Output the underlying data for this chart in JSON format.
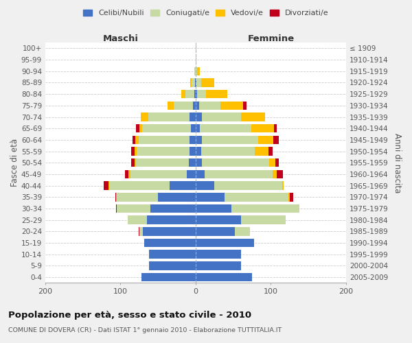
{
  "age_groups": [
    "0-4",
    "5-9",
    "10-14",
    "15-19",
    "20-24",
    "25-29",
    "30-34",
    "35-39",
    "40-44",
    "45-49",
    "50-54",
    "55-59",
    "60-64",
    "65-69",
    "70-74",
    "75-79",
    "80-84",
    "85-89",
    "90-94",
    "95-99",
    "100+"
  ],
  "birth_years": [
    "2005-2009",
    "2000-2004",
    "1995-1999",
    "1990-1994",
    "1985-1989",
    "1980-1984",
    "1975-1979",
    "1970-1974",
    "1965-1969",
    "1960-1964",
    "1955-1959",
    "1950-1954",
    "1945-1949",
    "1940-1944",
    "1935-1939",
    "1930-1934",
    "1925-1929",
    "1920-1924",
    "1915-1919",
    "1910-1914",
    "≤ 1909"
  ],
  "maschi": {
    "celibi": [
      72,
      62,
      62,
      68,
      70,
      65,
      60,
      50,
      35,
      12,
      9,
      8,
      8,
      6,
      8,
      4,
      2,
      1,
      0,
      0,
      0
    ],
    "coniugati": [
      0,
      0,
      0,
      0,
      5,
      25,
      45,
      55,
      80,
      75,
      70,
      70,
      68,
      65,
      55,
      25,
      12,
      4,
      2,
      0,
      0
    ],
    "vedovi": [
      0,
      0,
      0,
      0,
      0,
      0,
      0,
      1,
      1,
      2,
      2,
      3,
      4,
      4,
      10,
      8,
      5,
      2,
      0,
      0,
      0
    ],
    "divorziati": [
      0,
      0,
      0,
      0,
      1,
      0,
      1,
      1,
      6,
      5,
      5,
      5,
      4,
      4,
      0,
      0,
      0,
      0,
      0,
      0,
      0
    ]
  },
  "femmine": {
    "nubili": [
      75,
      60,
      60,
      78,
      52,
      60,
      48,
      38,
      25,
      12,
      8,
      7,
      8,
      6,
      8,
      5,
      2,
      1,
      0,
      0,
      0
    ],
    "coniugate": [
      0,
      0,
      0,
      0,
      20,
      60,
      90,
      85,
      90,
      90,
      90,
      72,
      75,
      68,
      52,
      28,
      12,
      6,
      2,
      0,
      0
    ],
    "vedove": [
      0,
      0,
      0,
      0,
      0,
      0,
      0,
      2,
      2,
      6,
      8,
      18,
      20,
      30,
      32,
      30,
      28,
      18,
      4,
      1,
      1
    ],
    "divorziate": [
      0,
      0,
      0,
      0,
      0,
      0,
      0,
      5,
      0,
      8,
      5,
      5,
      8,
      4,
      0,
      5,
      0,
      0,
      0,
      0,
      0
    ]
  },
  "colors": {
    "celibi": "#4472C4",
    "coniugati": "#c8daa4",
    "vedovi": "#ffc000",
    "divorziati": "#c0001a"
  },
  "title": "Popolazione per età, sesso e stato civile - 2010",
  "subtitle": "COMUNE DI DOVERA (CR) - Dati ISTAT 1° gennaio 2010 - Elaborazione TUTTITALIA.IT",
  "xlabel_left": "Maschi",
  "xlabel_right": "Femmine",
  "ylabel_left": "Fasce di età",
  "ylabel_right": "Anni di nascita",
  "xlim": 200,
  "legend_labels": [
    "Celibi/Nubili",
    "Coniugati/e",
    "Vedovi/e",
    "Divorziati/e"
  ],
  "bg_color": "#f0f0f0",
  "plot_bg_color": "#ffffff",
  "grid_color": "#cccccc"
}
